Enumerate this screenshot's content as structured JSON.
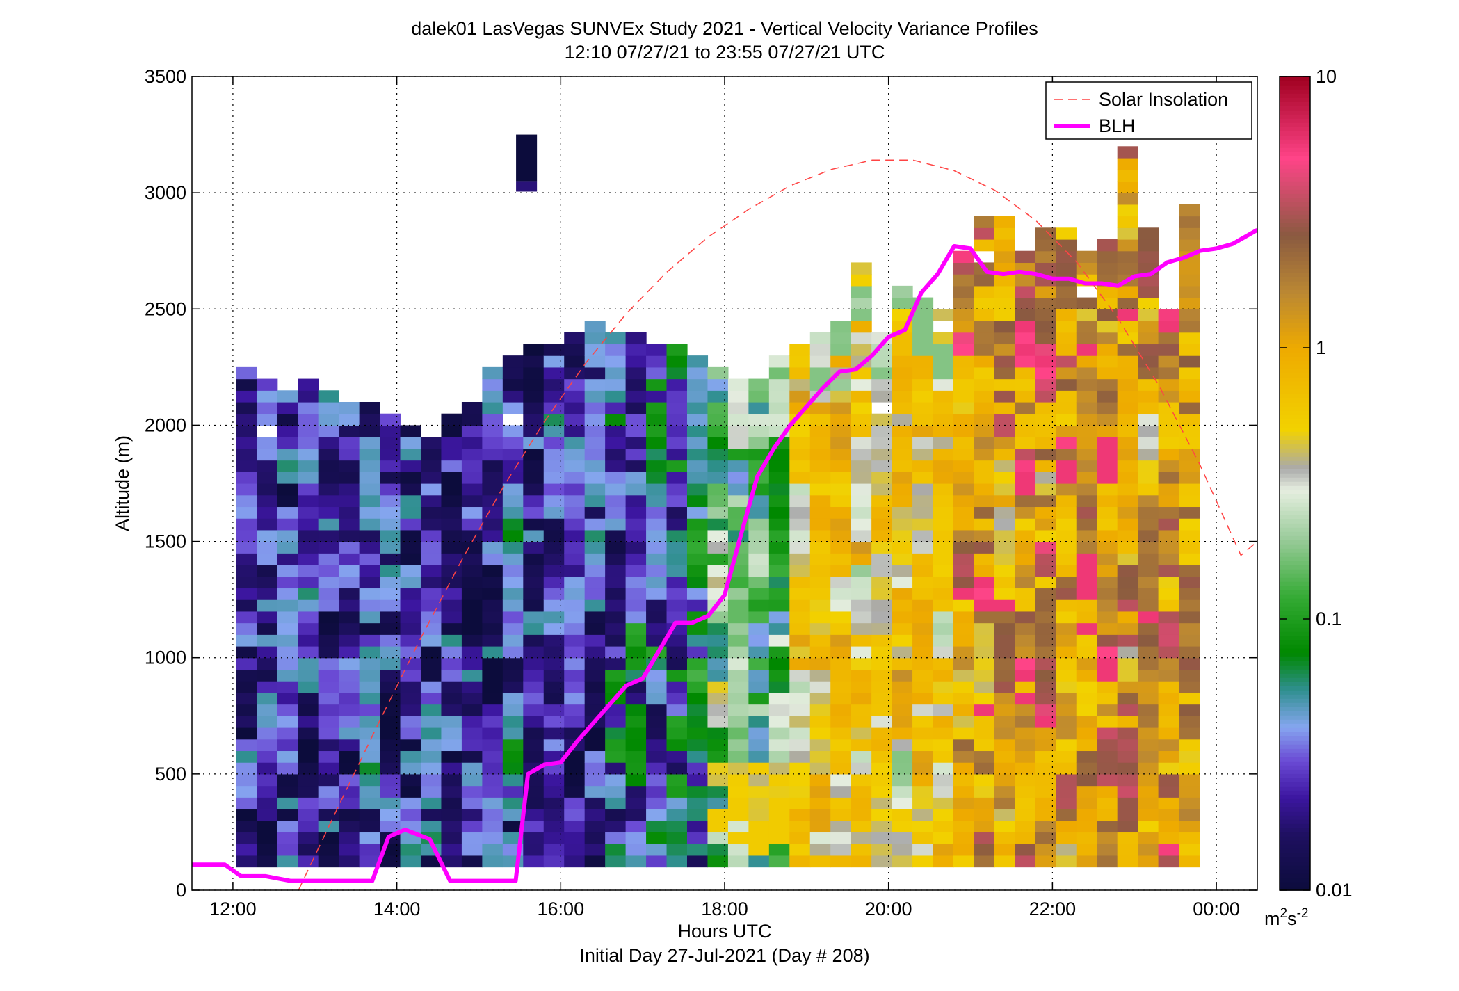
{
  "chart_data": {
    "type": "heatmap",
    "title": "dalek01 LasVegas SUNVEx Study 2021 - Vertical Velocity Variance Profiles",
    "subtitle": "12:10 07/27/21 to 23:55 07/27/21  UTC",
    "xlabel": "Hours UTC",
    "xlabel2": "Initial Day 27-Jul-2021 (Day # 208)",
    "ylabel": "Altitude (m)",
    "xlim": [
      11.5,
      24.5
    ],
    "ylim": [
      0,
      3500
    ],
    "x_ticks": [
      {
        "value": 12,
        "label": "12:00"
      },
      {
        "value": 14,
        "label": "14:00"
      },
      {
        "value": 16,
        "label": "16:00"
      },
      {
        "value": 18,
        "label": "18:00"
      },
      {
        "value": 20,
        "label": "20:00"
      },
      {
        "value": 22,
        "label": "22:00"
      },
      {
        "value": 24,
        "label": "00:00"
      }
    ],
    "y_ticks": [
      {
        "value": 0,
        "label": "0"
      },
      {
        "value": 500,
        "label": "500"
      },
      {
        "value": 1000,
        "label": "1000"
      },
      {
        "value": 1500,
        "label": "1500"
      },
      {
        "value": 2000,
        "label": "2000"
      },
      {
        "value": 2500,
        "label": "2500"
      },
      {
        "value": 3000,
        "label": "3000"
      },
      {
        "value": 3500,
        "label": "3500"
      }
    ],
    "grid": true,
    "legend_position": "top-right",
    "colorbar": {
      "scale": "log",
      "range": [
        0.01,
        10
      ],
      "ticks": [
        {
          "value": 0.01,
          "label": "0.01"
        },
        {
          "value": 0.1,
          "label": "0.1"
        },
        {
          "value": 1,
          "label": "1"
        },
        {
          "value": 10,
          "label": "10"
        }
      ],
      "units_base": "m",
      "units_sup1": "2",
      "units_mid": "s",
      "units_sup2": "-2",
      "color_stops": [
        {
          "value": 0.01,
          "color": "#0c0c3c"
        },
        {
          "value": 0.016,
          "color": "#1e1060"
        },
        {
          "value": 0.022,
          "color": "#3c16a0"
        },
        {
          "value": 0.03,
          "color": "#6a4ad4"
        },
        {
          "value": 0.04,
          "color": "#86a6f0"
        },
        {
          "value": 0.055,
          "color": "#2f8f8f"
        },
        {
          "value": 0.075,
          "color": "#008800"
        },
        {
          "value": 0.12,
          "color": "#33aa33"
        },
        {
          "value": 0.2,
          "color": "#9ccc9c"
        },
        {
          "value": 0.3,
          "color": "#e6eee0"
        },
        {
          "value": 0.36,
          "color": "#aaaaaa"
        },
        {
          "value": 0.5,
          "color": "#f2d200"
        },
        {
          "value": 1.0,
          "color": "#eeaa00"
        },
        {
          "value": 1.6,
          "color": "#bb8833"
        },
        {
          "value": 2.6,
          "color": "#8a5a40"
        },
        {
          "value": 5.0,
          "color": "#ff4488"
        },
        {
          "value": 10,
          "color": "#a00020"
        }
      ]
    },
    "heatmap": {
      "x_start": 12.1667,
      "x_step": 0.25,
      "y_start": 100,
      "y_step": 50,
      "columns": [
        {
          "top": 2250,
          "regime": "low"
        },
        {
          "top": 2200,
          "regime": "low"
        },
        {
          "top": 2150,
          "regime": "low"
        },
        {
          "top": 2200,
          "regime": "low"
        },
        {
          "top": 2150,
          "regime": "low"
        },
        {
          "top": 2100,
          "regime": "low"
        },
        {
          "top": 2100,
          "regime": "low"
        },
        {
          "top": 2050,
          "regime": "low"
        },
        {
          "top": 2000,
          "regime": "low"
        },
        {
          "top": 2000,
          "regime": "low"
        },
        {
          "top": 2050,
          "regime": "low"
        },
        {
          "top": 2100,
          "regime": "low"
        },
        {
          "top": 2250,
          "regime": "low"
        },
        {
          "top": 2300,
          "regime": "low"
        },
        {
          "top": 2350,
          "regime": "low"
        },
        {
          "top": 2350,
          "regime": "low"
        },
        {
          "top": 2400,
          "regime": "low"
        },
        {
          "top": 2450,
          "regime": "low"
        },
        {
          "top": 2400,
          "regime": "mix"
        },
        {
          "top": 2400,
          "regime": "mix"
        },
        {
          "top": 2350,
          "regime": "mix"
        },
        {
          "top": 2350,
          "regime": "mix"
        },
        {
          "top": 2300,
          "regime": "mix"
        },
        {
          "top": 2250,
          "regime": "green"
        },
        {
          "top": 2200,
          "regime": "green"
        },
        {
          "top": 2200,
          "regime": "green"
        },
        {
          "top": 2300,
          "regime": "green"
        },
        {
          "top": 2350,
          "regime": "yellow"
        },
        {
          "top": 2400,
          "regime": "yellow"
        },
        {
          "top": 2450,
          "regime": "yellow"
        },
        {
          "top": 2700,
          "regime": "yellow"
        },
        {
          "top": 2400,
          "regime": "yellow"
        },
        {
          "top": 2600,
          "regime": "yellow"
        },
        {
          "top": 2550,
          "regime": "yellow"
        },
        {
          "top": 2500,
          "regime": "yellow"
        },
        {
          "top": 2750,
          "regime": "brown"
        },
        {
          "top": 2900,
          "regime": "brown"
        },
        {
          "top": 2900,
          "regime": "brown"
        },
        {
          "top": 2800,
          "regime": "brown"
        },
        {
          "top": 2850,
          "regime": "brown"
        },
        {
          "top": 2850,
          "regime": "brown"
        },
        {
          "top": 2750,
          "regime": "brown"
        },
        {
          "top": 2800,
          "regime": "brown"
        },
        {
          "top": 3250,
          "regime": "brown"
        },
        {
          "top": 2850,
          "regime": "brown"
        },
        {
          "top": 2500,
          "regime": "brown"
        },
        {
          "top": 2950,
          "regime": "brown"
        }
      ],
      "isolated_cells": [
        {
          "x": 15.58,
          "y_from": 3050,
          "y_to": 3250,
          "value": 0.01
        }
      ]
    },
    "series": [
      {
        "name": "Solar Insolation",
        "style": "dashed",
        "color": "#ff4444",
        "x": [
          12.8,
          13.3,
          13.8,
          14.3,
          14.8,
          15.3,
          15.8,
          16.3,
          16.8,
          17.3,
          17.8,
          18.3,
          18.8,
          19.3,
          19.8,
          20.3,
          20.8,
          21.3,
          21.8,
          22.3,
          22.8,
          23.3,
          23.8,
          24.3,
          24.5
        ],
        "y": [
          0,
          370,
          735,
          1090,
          1425,
          1735,
          2015,
          2265,
          2480,
          2660,
          2810,
          2930,
          3030,
          3100,
          3140,
          3140,
          3095,
          3010,
          2880,
          2700,
          2460,
          2170,
          1830,
          1440,
          1500
        ]
      },
      {
        "name": "BLH",
        "style": "solid",
        "color": "#ff00ff",
        "x": [
          11.5,
          11.9,
          12.1,
          12.4,
          12.7,
          13.1,
          13.5,
          13.7,
          13.9,
          14.1,
          14.4,
          14.65,
          15.0,
          15.3,
          15.45,
          15.6,
          15.8,
          16.0,
          16.2,
          16.4,
          16.6,
          16.8,
          17.0,
          17.2,
          17.4,
          17.6,
          17.8,
          18.0,
          18.2,
          18.4,
          18.6,
          18.8,
          19.0,
          19.2,
          19.4,
          19.6,
          19.8,
          20.0,
          20.2,
          20.4,
          20.6,
          20.8,
          21.0,
          21.2,
          21.4,
          21.6,
          21.8,
          22.0,
          22.2,
          22.4,
          22.6,
          22.8,
          23.0,
          23.2,
          23.4,
          23.6,
          23.8,
          24.0,
          24.2,
          24.5
        ],
        "y": [
          110,
          110,
          60,
          60,
          40,
          40,
          40,
          40,
          230,
          260,
          220,
          40,
          40,
          40,
          40,
          500,
          540,
          550,
          640,
          720,
          800,
          880,
          910,
          1030,
          1150,
          1150,
          1180,
          1270,
          1530,
          1780,
          1900,
          2000,
          2080,
          2160,
          2230,
          2240,
          2300,
          2380,
          2410,
          2570,
          2650,
          2770,
          2760,
          2660,
          2650,
          2660,
          2650,
          2630,
          2630,
          2610,
          2610,
          2600,
          2640,
          2650,
          2700,
          2720,
          2750,
          2760,
          2780,
          2840
        ]
      }
    ]
  }
}
